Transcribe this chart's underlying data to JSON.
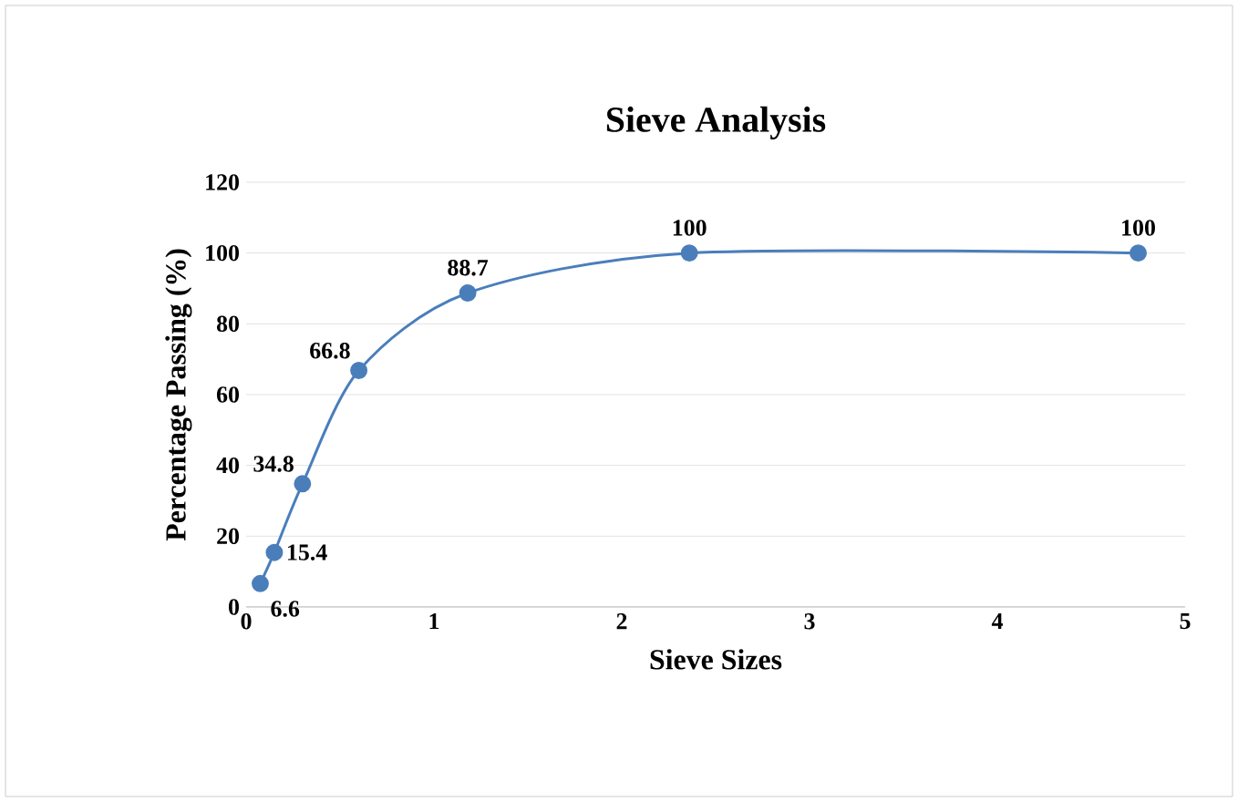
{
  "chart_data": {
    "type": "line",
    "title": "Sieve Analysis",
    "xlabel": "Sieve Sizes",
    "ylabel": "Percentage Passing (%)",
    "x": [
      0.075,
      0.15,
      0.3,
      0.6,
      1.18,
      2.36,
      4.75
    ],
    "series": [
      {
        "color": "#4a7ebb",
        "values": [
          6.6,
          15.4,
          34.8,
          66.8,
          88.7,
          100,
          100
        ]
      }
    ],
    "xlim": [
      0,
      5
    ],
    "xticks": [
      0,
      1,
      2,
      3,
      4,
      5
    ],
    "ylim": [
      0,
      120
    ],
    "yticks": [
      0,
      20,
      40,
      60,
      80,
      100,
      120
    ],
    "grid": "y",
    "marker": "circle",
    "line_style": "solid",
    "data_labels": true
  }
}
